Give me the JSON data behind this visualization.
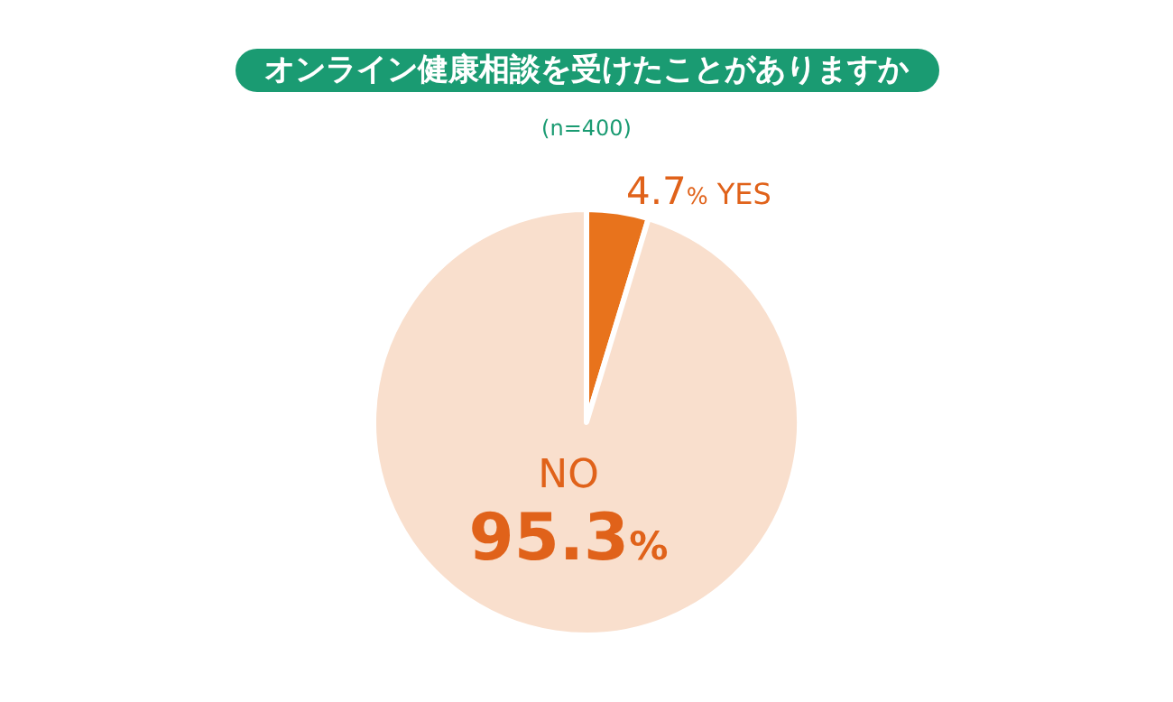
{
  "chart_data": {
    "type": "pie",
    "title": "オンライン健康相談を受けたことがありますか",
    "subtitle": "(n=400)",
    "categories": [
      "YES",
      "NO"
    ],
    "values": [
      4.7,
      95.3
    ],
    "colors": [
      "#e8731c",
      "#f9dfcd"
    ],
    "value_labels": [
      "4.7%",
      "95.3%"
    ]
  }
}
